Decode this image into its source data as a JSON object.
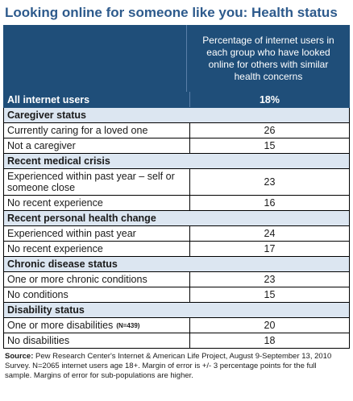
{
  "title": "Looking online for someone like you: Health status",
  "column_header": "Percentage of internet users in each group who have looked online for others with similar health concerns",
  "all_users": {
    "label": "All internet users",
    "value": "18%"
  },
  "sections": [
    {
      "heading": "Caregiver status",
      "rows": [
        {
          "label": "Currently caring for a loved one",
          "value": "26"
        },
        {
          "label": "Not a caregiver",
          "value": "15"
        }
      ]
    },
    {
      "heading": "Recent medical crisis",
      "rows": [
        {
          "label": "Experienced within past year – self or someone close",
          "value": "23"
        },
        {
          "label": "No recent experience",
          "value": "16"
        }
      ]
    },
    {
      "heading": "Recent personal health change",
      "rows": [
        {
          "label": "Experienced within past year",
          "value": "24"
        },
        {
          "label": "No recent experience",
          "value": "17"
        }
      ]
    },
    {
      "heading": "Chronic disease status",
      "rows": [
        {
          "label": "One or more chronic conditions",
          "value": "23"
        },
        {
          "label": "No conditions",
          "value": "15"
        }
      ]
    },
    {
      "heading": "Disability status",
      "rows": [
        {
          "label": "One or more disabilities",
          "note": "(N=439)",
          "value": "20"
        },
        {
          "label": "No disabilities",
          "value": "18"
        }
      ]
    }
  ],
  "source": {
    "label": "Source:",
    "text": " Pew Research Center's Internet & American Life Project, August 9-September 13, 2010 Survey. N=2065 internet users age 18+. Margin of error is +/- 3 percentage points for the full sample. Margins of error for sub-populations are higher."
  }
}
